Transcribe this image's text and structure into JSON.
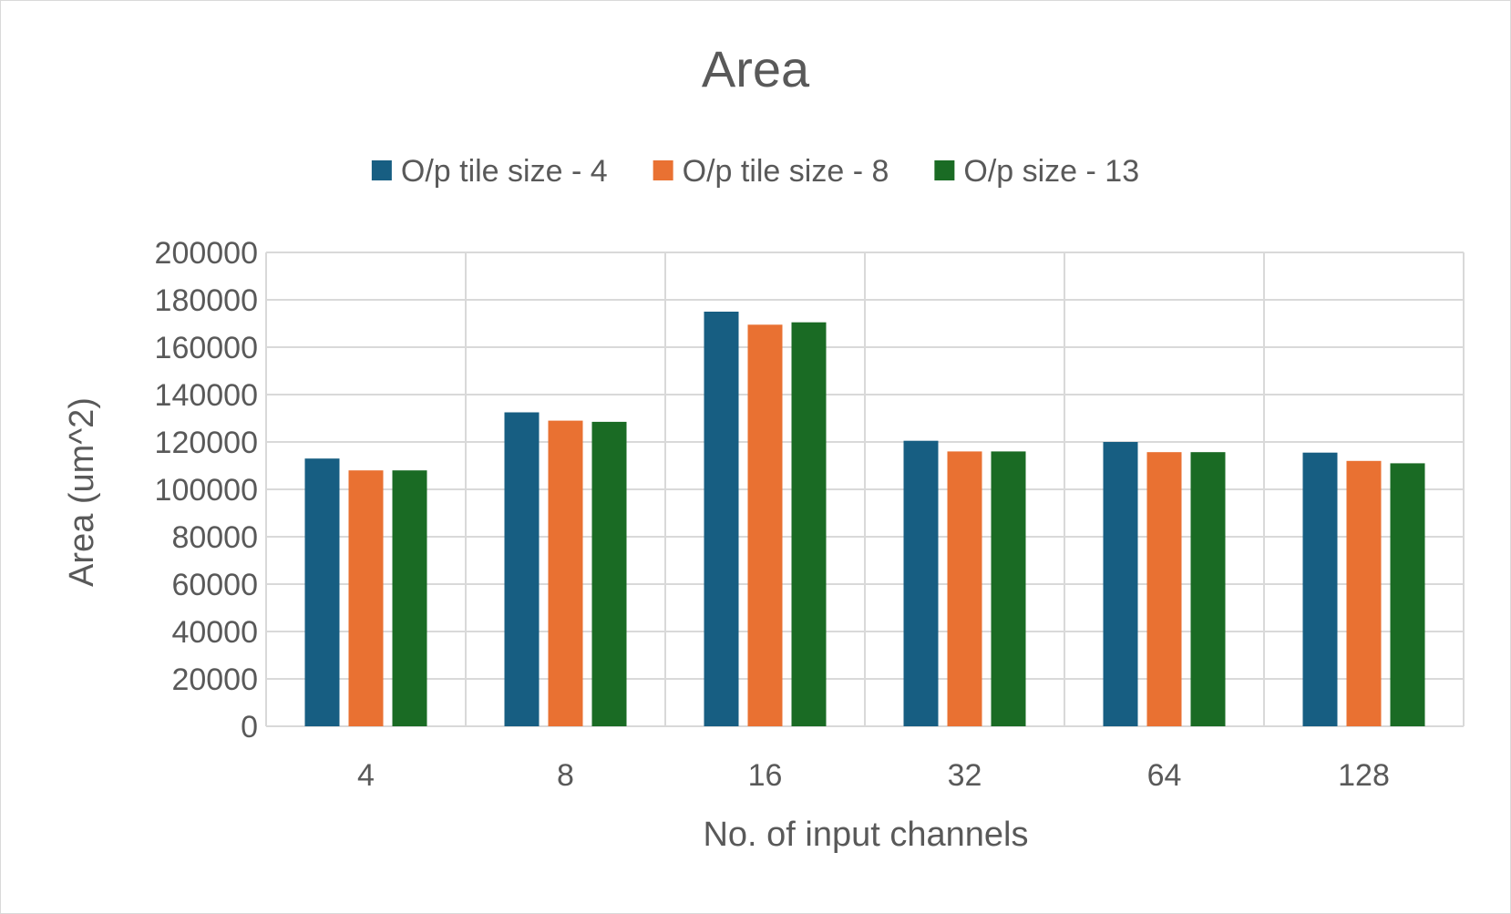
{
  "chart_data": {
    "type": "bar",
    "title": "Area",
    "xlabel": "No. of input channels",
    "ylabel": "Area (um^2)",
    "categories": [
      "4",
      "8",
      "16",
      "32",
      "64",
      "128"
    ],
    "ylim": [
      0,
      200000
    ],
    "yticks": [
      "0",
      "20000",
      "40000",
      "60000",
      "80000",
      "100000",
      "120000",
      "140000",
      "160000",
      "180000",
      "200000"
    ],
    "grid": true,
    "legend_position": "top",
    "series": [
      {
        "name": "O/p tile size - 4",
        "color": "#175e82",
        "values": [
          113000,
          132500,
          175000,
          120500,
          120000,
          115500
        ]
      },
      {
        "name": "O/p tile size - 8",
        "color": "#e97132",
        "values": [
          108000,
          129000,
          169500,
          116000,
          115700,
          112000
        ]
      },
      {
        "name": "O/p size - 13",
        "color": "#1a6b24",
        "values": [
          108000,
          128500,
          170500,
          116000,
          115700,
          111000
        ]
      }
    ]
  }
}
